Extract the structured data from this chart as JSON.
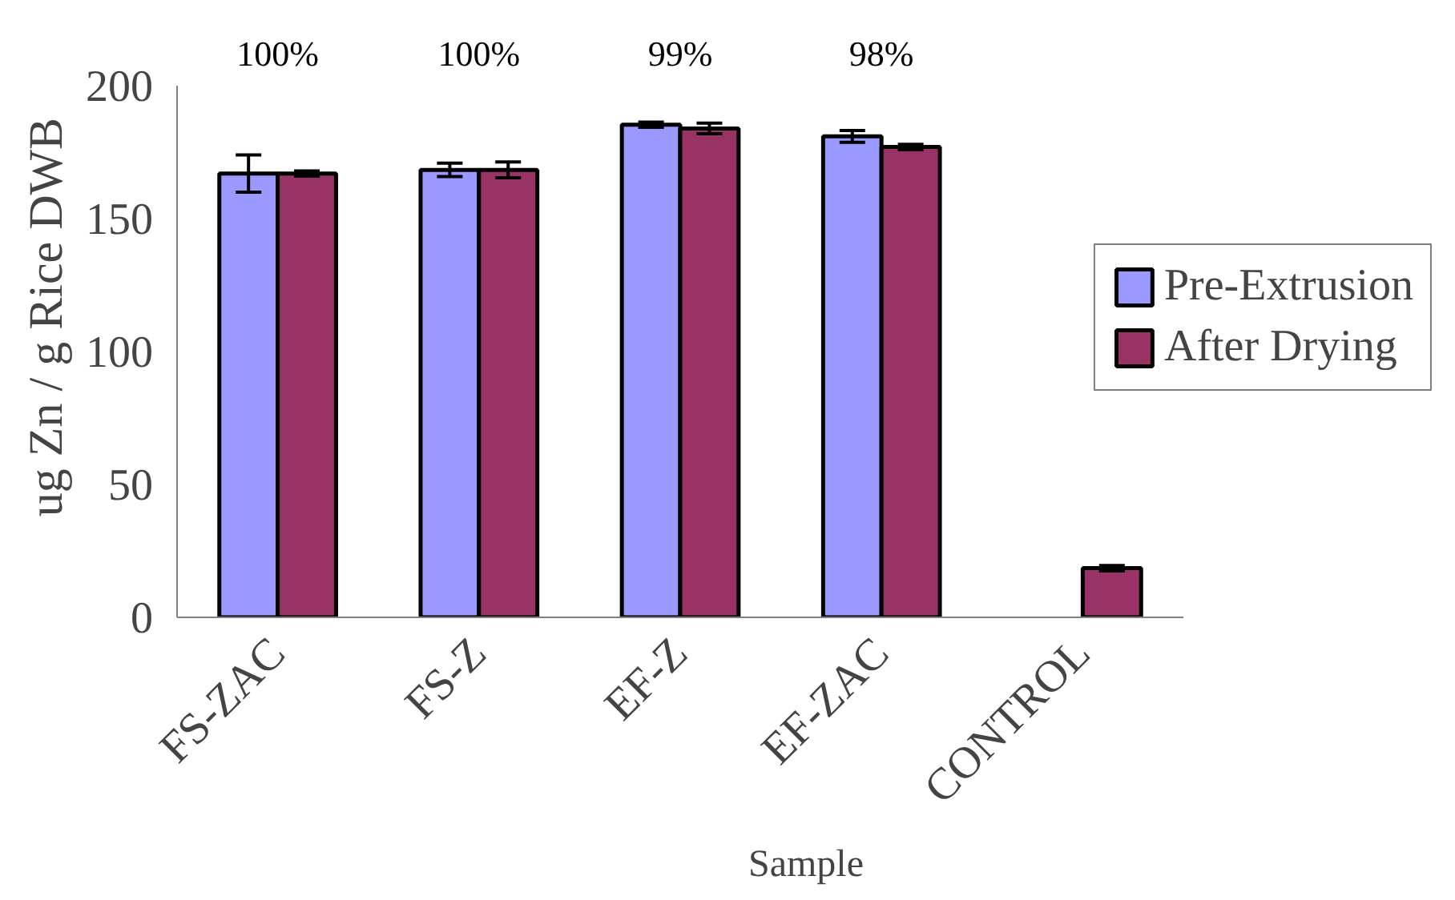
{
  "chart_data": {
    "type": "bar",
    "xlabel": "Sample",
    "ylabel": "ug Zn / g Rice DWB",
    "categories": [
      "FS-ZAC",
      "FS-Z",
      "EF-Z",
      "EF-ZAC",
      "CONTROL"
    ],
    "series": [
      {
        "name": "Pre-Extrusion",
        "color": "#9999ff",
        "values": [
          167,
          168.4,
          185.4,
          181,
          null
        ],
        "errors": [
          7,
          2.5,
          1,
          2.2,
          null
        ]
      },
      {
        "name": "After Drying",
        "color": "#993366",
        "values": [
          167,
          168.4,
          184,
          177,
          18.5
        ],
        "errors": [
          1,
          3,
          2,
          1,
          1
        ]
      }
    ],
    "ylim": [
      0,
      200
    ],
    "yticks": [
      0,
      50,
      100,
      150,
      200
    ],
    "grid": false,
    "legend": "right",
    "annotations": [
      "100%",
      "100%",
      "99%",
      "98%"
    ]
  }
}
